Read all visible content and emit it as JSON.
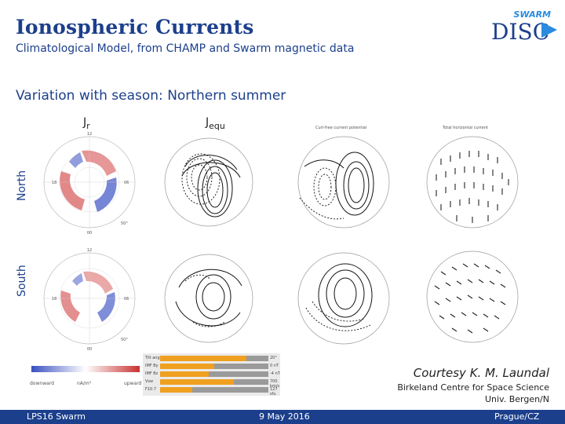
{
  "header": {
    "title": "Ionospheric Currents",
    "subtitle": "Climatological Model, from CHAMP and Swarm magnetic data",
    "logo_top": "SWARM",
    "logo_main": "DISC"
  },
  "section_title": "Variation with season: Northern summer",
  "columns": {
    "jr": "J",
    "jr_sub": "r",
    "jequ": "J",
    "jequ_sub": "equ",
    "col3_caption": "Curl-free current potential",
    "col4_caption": "Total horizontal current"
  },
  "rows": {
    "north": "North",
    "south": "South"
  },
  "dial_labels": {
    "top": "12",
    "bottom": "00",
    "left": "18",
    "right": "06",
    "lat": "50°"
  },
  "colorbar": {
    "left": "downward",
    "mid": "nA/m²",
    "right": "upward"
  },
  "conditions": {
    "items": [
      {
        "label": "Tilt angle",
        "value": "20°",
        "fill": 0.8
      },
      {
        "label": "IMF By",
        "value": "0 nT",
        "fill": 0.5
      },
      {
        "label": "IMF Bz",
        "value": "-4 nT",
        "fill": 0.45
      },
      {
        "label": "Vsw",
        "value": "700 km/s",
        "fill": 0.68
      },
      {
        "label": "F10.7",
        "value": "127 sfu",
        "fill": 0.3
      }
    ]
  },
  "credits": {
    "line1": "Courtesy K. M. Laundal",
    "line2": "Birkeland Centre for Space Science",
    "line3": "Univ. Bergen/N"
  },
  "footer": {
    "left": "LPS16 Swarm",
    "center": "9 May 2016",
    "right": "Prague/CZ"
  },
  "colors": {
    "brand": "#1c3f8c",
    "upward": "#c83232",
    "downward": "#3a4fc0",
    "bar": "#f0a020"
  }
}
